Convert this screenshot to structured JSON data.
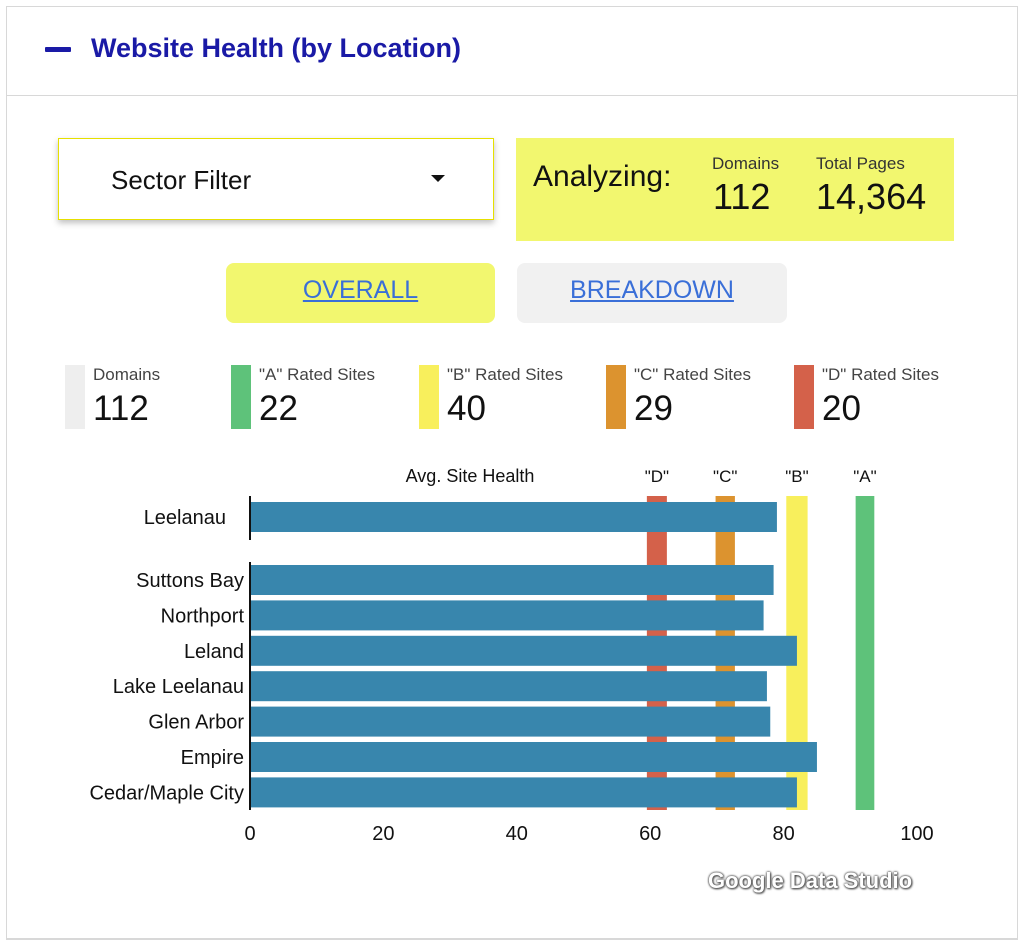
{
  "header": {
    "title": "Website Health (by Location)"
  },
  "filter": {
    "label": "Sector Filter"
  },
  "analyzing": {
    "label": "Analyzing:",
    "domains_label": "Domains",
    "domains_value": "112",
    "pages_label": "Total Pages",
    "pages_value": "14,364"
  },
  "buttons": {
    "overall": "OVERALL",
    "breakdown": "BREAKDOWN"
  },
  "stats": [
    {
      "label": "Domains",
      "value": "112",
      "color": "#eeeeee"
    },
    {
      "label": "\"A\" Rated Sites",
      "value": "22",
      "color": "#5ec27a"
    },
    {
      "label": "\"B\" Rated Sites",
      "value": "40",
      "color": "#f8ef5c"
    },
    {
      "label": "\"C\" Rated Sites",
      "value": "29",
      "color": "#dc932f"
    },
    {
      "label": "\"D\" Rated Sites",
      "value": "20",
      "color": "#d4614a"
    }
  ],
  "chart_data": {
    "type": "bar",
    "orientation": "horizontal",
    "title": "Avg. Site Health",
    "xlim": [
      0,
      100
    ],
    "x_ticks": [
      0,
      20,
      40,
      60,
      80,
      100
    ],
    "bar_color": "#3886ad",
    "summary": {
      "category": "Leelanau",
      "value": 79
    },
    "categories": [
      "Suttons Bay",
      "Northport",
      "Leland",
      "Lake Leelanau",
      "Glen Arbor",
      "Empire",
      "Cedar/Maple City"
    ],
    "values": [
      78.5,
      77,
      82,
      77.5,
      78,
      85,
      82
    ],
    "thresholds": [
      {
        "label": "\"D\"",
        "from": 59.5,
        "to": 62.5,
        "color": "#d4614a"
      },
      {
        "label": "\"C\"",
        "from": 69.8,
        "to": 72.7,
        "color": "#dc932f"
      },
      {
        "label": "\"B\"",
        "from": 80.4,
        "to": 83.6,
        "color": "#f8ef5c"
      },
      {
        "label": "\"A\"",
        "from": 90.8,
        "to": 93.6,
        "color": "#5ec27a"
      }
    ]
  },
  "watermark": "Google Data Studio"
}
